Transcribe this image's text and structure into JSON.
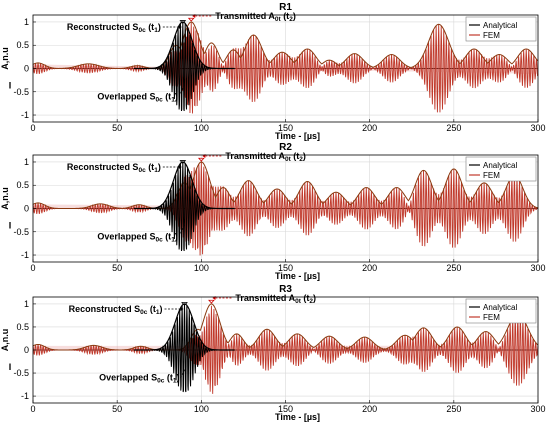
{
  "colors": {
    "analytical": "#000000",
    "fem": "#c0392b",
    "fem_envelope": "#8a3a10",
    "fem_fill": "#e8a0a0",
    "grid": "#d9d9d9",
    "annotation_red": "#d10000"
  },
  "chart_data": [
    {
      "type": "line",
      "title": "R1",
      "xlabel": "Time - [µs]",
      "ylabel": "A,n.u",
      "xlim": [
        0,
        300
      ],
      "ylim": [
        -1.15,
        1.15
      ],
      "xticks": [
        "0",
        "50",
        "100",
        "150",
        "200",
        "250",
        "300"
      ],
      "yticks": [
        "1",
        "0.5",
        "0",
        "-0.5",
        "-1"
      ],
      "grid": true,
      "legend": {
        "position": "top-right",
        "entries": [
          "Analytical",
          "FEM"
        ]
      },
      "annotations": {
        "reconstructed": {
          "text": "Reconstructed S0c (t1)",
          "base": "Reconstructed S",
          "sub": "0c",
          "tail": " (t",
          "tsub": "1",
          "close": ")"
        },
        "transmitted": {
          "text": "Transmitted A0t (t2)",
          "base": "Transmitted A",
          "sub": "0t",
          "tail": " (t",
          "tsub": "2",
          "close": ")"
        },
        "overlapped": {
          "text": "Overlapped S0c (t1)",
          "base": "Overlapped S",
          "sub": "0c",
          "tail": " (t",
          "tsub": "1",
          "close": ")"
        }
      },
      "series": [
        {
          "name": "Analytical",
          "packets": [
            {
              "t": 89,
              "amp": 1.0,
              "width": 5.5,
              "freq": 0.32
            }
          ]
        },
        {
          "name": "FEM",
          "packets": [
            {
              "t": 3,
              "amp": 0.12,
              "width": 4,
              "freq": 0.3
            },
            {
              "t": 33,
              "amp": 0.1,
              "width": 6,
              "freq": 0.3
            },
            {
              "t": 62,
              "amp": 0.06,
              "width": 4,
              "freq": 0.3
            },
            {
              "t": 85,
              "amp": 0.5,
              "width": 4,
              "freq": 0.32
            },
            {
              "t": 94,
              "amp": 1.0,
              "width": 5,
              "freq": 0.32
            },
            {
              "t": 106,
              "amp": 0.55,
              "width": 4,
              "freq": 0.3
            },
            {
              "t": 119,
              "amp": 0.4,
              "width": 4,
              "freq": 0.3
            },
            {
              "t": 131,
              "amp": 0.72,
              "width": 5,
              "freq": 0.3
            },
            {
              "t": 148,
              "amp": 0.35,
              "width": 5,
              "freq": 0.3
            },
            {
              "t": 163,
              "amp": 0.42,
              "width": 5,
              "freq": 0.3
            },
            {
              "t": 176,
              "amp": 0.18,
              "width": 4,
              "freq": 0.3
            },
            {
              "t": 191,
              "amp": 0.32,
              "width": 5,
              "freq": 0.3
            },
            {
              "t": 213,
              "amp": 0.3,
              "width": 5,
              "freq": 0.3
            },
            {
              "t": 241,
              "amp": 0.95,
              "width": 6,
              "freq": 0.3
            },
            {
              "t": 262,
              "amp": 0.42,
              "width": 5,
              "freq": 0.3
            },
            {
              "t": 277,
              "amp": 0.3,
              "width": 5,
              "freq": 0.3
            },
            {
              "t": 293,
              "amp": 0.42,
              "width": 5,
              "freq": 0.3
            }
          ]
        }
      ]
    },
    {
      "type": "line",
      "title": "R2",
      "xlabel": "Time - [µs]",
      "ylabel": "A,n.u",
      "xlim": [
        0,
        300
      ],
      "ylim": [
        -1.15,
        1.15
      ],
      "xticks": [
        "0",
        "50",
        "100",
        "150",
        "200",
        "250",
        "300"
      ],
      "yticks": [
        "1",
        "0.5",
        "0",
        "-0.5",
        "-1"
      ],
      "grid": true,
      "legend": {
        "position": "top-right",
        "entries": [
          "Analytical",
          "FEM"
        ]
      },
      "annotations": {
        "reconstructed": {
          "text": "Reconstructed S0c (t1)",
          "base": "Reconstructed S",
          "sub": "0c",
          "tail": " (t",
          "tsub": "1",
          "close": ")"
        },
        "transmitted": {
          "text": "Transmitted A0t (t2)",
          "base": "Transmitted A",
          "sub": "0t",
          "tail": " (t",
          "tsub": "2",
          "close": ")"
        },
        "overlapped": {
          "text": "Overlapped S0c (t1)",
          "base": "Overlapped S",
          "sub": "0c",
          "tail": " (t",
          "tsub": "1",
          "close": ")"
        }
      },
      "series": [
        {
          "name": "Analytical",
          "packets": [
            {
              "t": 89,
              "amp": 1.0,
              "width": 5.5,
              "freq": 0.32
            }
          ]
        },
        {
          "name": "FEM",
          "packets": [
            {
              "t": 3,
              "amp": 0.12,
              "width": 4,
              "freq": 0.3
            },
            {
              "t": 40,
              "amp": 0.1,
              "width": 5,
              "freq": 0.3
            },
            {
              "t": 63,
              "amp": 0.08,
              "width": 4,
              "freq": 0.3
            },
            {
              "t": 90,
              "amp": 0.55,
              "width": 4,
              "freq": 0.32
            },
            {
              "t": 100,
              "amp": 1.0,
              "width": 5,
              "freq": 0.32
            },
            {
              "t": 113,
              "amp": 0.45,
              "width": 4,
              "freq": 0.3
            },
            {
              "t": 128,
              "amp": 0.6,
              "width": 5,
              "freq": 0.3
            },
            {
              "t": 145,
              "amp": 0.42,
              "width": 5,
              "freq": 0.3
            },
            {
              "t": 163,
              "amp": 0.58,
              "width": 5,
              "freq": 0.3
            },
            {
              "t": 180,
              "amp": 0.35,
              "width": 5,
              "freq": 0.3
            },
            {
              "t": 198,
              "amp": 0.45,
              "width": 5,
              "freq": 0.3
            },
            {
              "t": 216,
              "amp": 0.45,
              "width": 5,
              "freq": 0.3
            },
            {
              "t": 232,
              "amp": 0.82,
              "width": 5,
              "freq": 0.3
            },
            {
              "t": 250,
              "amp": 0.85,
              "width": 5,
              "freq": 0.3
            },
            {
              "t": 268,
              "amp": 0.55,
              "width": 5,
              "freq": 0.3
            },
            {
              "t": 286,
              "amp": 0.72,
              "width": 5,
              "freq": 0.3
            }
          ]
        }
      ]
    },
    {
      "type": "line",
      "title": "R3",
      "xlabel": "Time - [µs]",
      "ylabel": "A,n.u",
      "xlim": [
        0,
        300
      ],
      "ylim": [
        -1.15,
        1.15
      ],
      "xticks": [
        "0",
        "50",
        "100",
        "150",
        "200",
        "250",
        "300"
      ],
      "yticks": [
        "1",
        "0.5",
        "0",
        "-0.5",
        "-1"
      ],
      "grid": true,
      "legend": {
        "position": "top-right",
        "entries": [
          "Analytical",
          "FEM"
        ]
      },
      "annotations": {
        "reconstructed": {
          "text": "Reconstructed S0c (t1)",
          "base": "Reconstructed S",
          "sub": "0c",
          "tail": " (t",
          "tsub": "1",
          "close": ")"
        },
        "transmitted": {
          "text": "Transmitted A0t (t2)",
          "base": "Transmitted A",
          "sub": "0t",
          "tail": " (t",
          "tsub": "2",
          "close": ")"
        },
        "overlapped": {
          "text": "Overlapped S0c (t1)",
          "base": "Overlapped S",
          "sub": "0c",
          "tail": " (t",
          "tsub": "1",
          "close": ")"
        }
      },
      "series": [
        {
          "name": "Analytical",
          "packets": [
            {
              "t": 90,
              "amp": 1.0,
              "width": 5.5,
              "freq": 0.32
            }
          ]
        },
        {
          "name": "FEM",
          "packets": [
            {
              "t": 3,
              "amp": 0.12,
              "width": 4,
              "freq": 0.3
            },
            {
              "t": 36,
              "amp": 0.1,
              "width": 5,
              "freq": 0.3
            },
            {
              "t": 64,
              "amp": 0.08,
              "width": 4,
              "freq": 0.3
            },
            {
              "t": 98,
              "amp": 0.45,
              "width": 4,
              "freq": 0.32
            },
            {
              "t": 106,
              "amp": 1.0,
              "width": 5,
              "freq": 0.32
            },
            {
              "t": 121,
              "amp": 0.35,
              "width": 4,
              "freq": 0.3
            },
            {
              "t": 139,
              "amp": 0.45,
              "width": 5,
              "freq": 0.3
            },
            {
              "t": 157,
              "amp": 0.35,
              "width": 5,
              "freq": 0.3
            },
            {
              "t": 176,
              "amp": 0.3,
              "width": 5,
              "freq": 0.3
            },
            {
              "t": 197,
              "amp": 0.28,
              "width": 5,
              "freq": 0.3
            },
            {
              "t": 221,
              "amp": 0.32,
              "width": 5,
              "freq": 0.3
            },
            {
              "t": 232,
              "amp": 0.48,
              "width": 5,
              "freq": 0.3
            },
            {
              "t": 252,
              "amp": 0.5,
              "width": 5,
              "freq": 0.3
            },
            {
              "t": 269,
              "amp": 0.4,
              "width": 5,
              "freq": 0.3
            },
            {
              "t": 288,
              "amp": 0.78,
              "width": 6,
              "freq": 0.3
            }
          ]
        }
      ]
    }
  ]
}
